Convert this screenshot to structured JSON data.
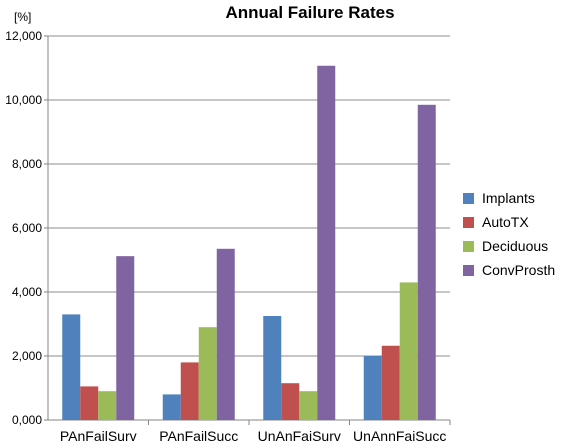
{
  "chart_data": {
    "type": "bar",
    "title": "Annual Failure Rates",
    "ylabel": "[%]",
    "xlabel": "",
    "categories": [
      "PAnFailSurv",
      "PAnFailSucc",
      "UnAnFaiSurv",
      "UnAnnFaiSucc"
    ],
    "ylim": [
      0,
      12
    ],
    "yticks": [
      0,
      2,
      4,
      6,
      8,
      10,
      12
    ],
    "ytick_labels": [
      "0,000",
      "2,000",
      "4,000",
      "6,000",
      "8,000",
      "10,000",
      "12,000"
    ],
    "grid": true,
    "legend_position": "right",
    "series": [
      {
        "name": "Implants",
        "color": "#4F81BD",
        "values": [
          3.3,
          0.8,
          3.25,
          2.0
        ]
      },
      {
        "name": "AutoTX",
        "color": "#C0504D",
        "values": [
          1.05,
          1.8,
          1.15,
          2.32
        ]
      },
      {
        "name": "Deciduous",
        "color": "#9BBB59",
        "values": [
          0.9,
          2.9,
          0.9,
          4.3
        ]
      },
      {
        "name": "ConvProsth",
        "color": "#8064A2",
        "values": [
          5.12,
          5.35,
          11.07,
          9.85
        ]
      }
    ]
  }
}
